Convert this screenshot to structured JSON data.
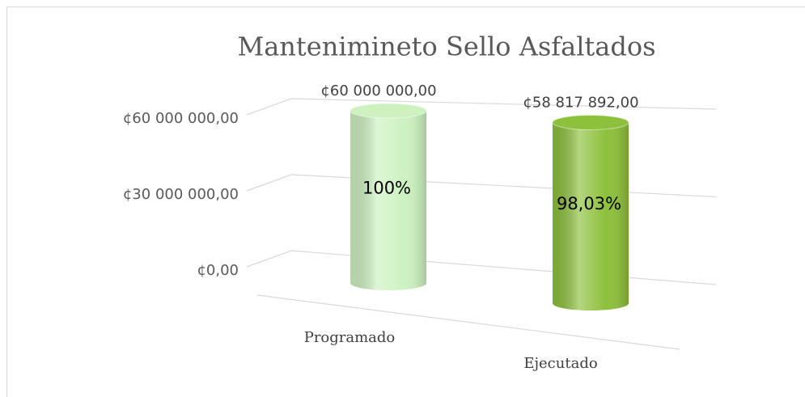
{
  "chart_data": {
    "type": "bar3d",
    "title": "Mantenimineto Sello Asfaltados",
    "categories": [
      "Programado",
      "Ejecutado"
    ],
    "values": [
      60000000,
      58817892
    ],
    "value_labels": [
      "¢60 000 000,00",
      "¢58 817 892,00"
    ],
    "percent_labels": [
      "100%",
      "98,03%"
    ],
    "colors": [
      "#cdf2c0",
      "#8dc03b"
    ],
    "ylim": [
      0,
      60000000
    ],
    "yticks": [
      {
        "value": 0,
        "label": "¢0,00"
      },
      {
        "value": 30000000,
        "label": "¢30 000 000,00"
      },
      {
        "value": 60000000,
        "label": "¢60 000 000,00"
      }
    ],
    "grid": true
  }
}
